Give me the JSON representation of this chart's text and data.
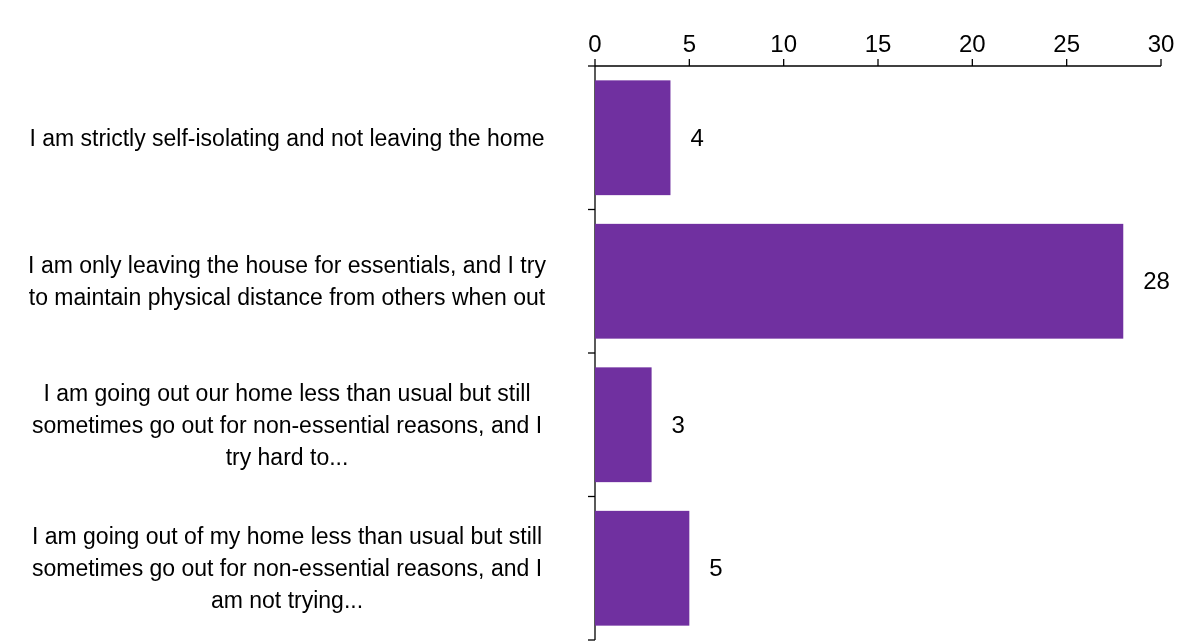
{
  "chart_data": {
    "type": "bar",
    "orientation": "horizontal",
    "categories": [
      "I am strictly self-isolating and not leaving the home",
      "I am only leaving the house for essentials, and I try to maintain physical distance from others when out",
      "I am going out our home less than usual but still sometimes go out for non-essential reasons, and I try hard to...",
      "I am going out of my home less than usual but still sometimes go out for non-essential reasons, and I am not trying..."
    ],
    "values": [
      4,
      28,
      3,
      5
    ],
    "color": "#7030a0",
    "xlim": [
      0,
      30
    ],
    "xticks": [
      0,
      5,
      10,
      15,
      20,
      25,
      30
    ],
    "data_labels": true
  }
}
